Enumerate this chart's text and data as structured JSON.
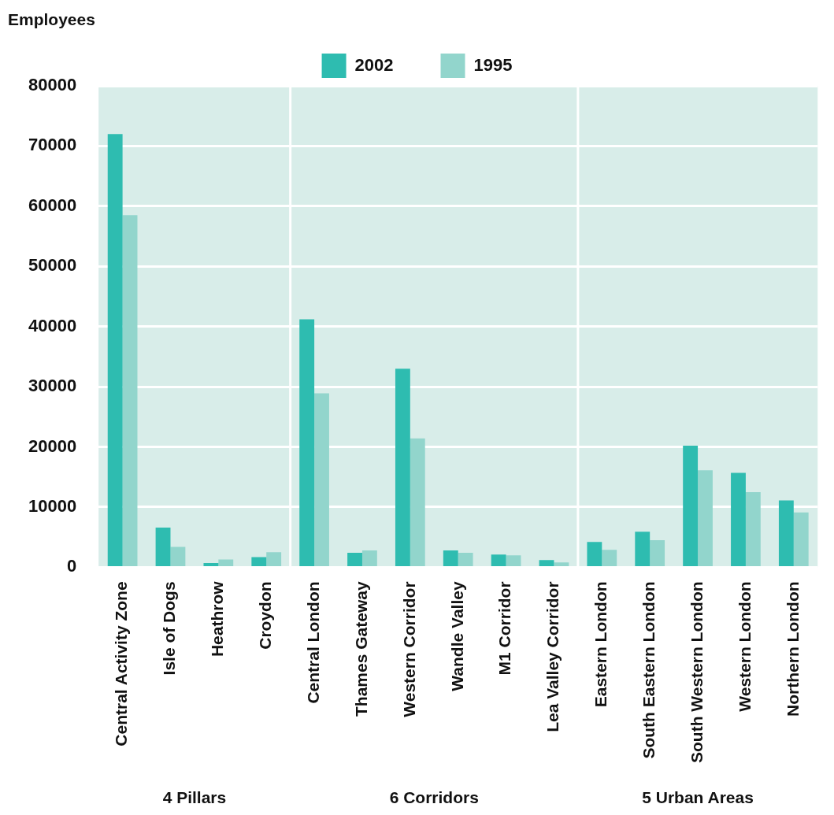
{
  "chart_data": {
    "type": "bar",
    "ylabel": "Employees",
    "categories": [
      "Central Activity Zone",
      "Isle of Dogs",
      "Heathrow",
      "Croydon",
      "Central London",
      "Thames Gateway",
      "Western Corridor",
      "Wandle Valley",
      "M1 Corridor",
      "Lea Valley Corridor",
      "Eastern London",
      "South Eastern London",
      "South Western London",
      "Western London",
      "Northern London"
    ],
    "series": [
      {
        "name": "2002",
        "color": "#2ebcb0",
        "values": [
          72000,
          6600,
          700,
          1700,
          41200,
          2400,
          33000,
          2800,
          2100,
          1200,
          4200,
          5900,
          20200,
          15700,
          11100
        ]
      },
      {
        "name": "1995",
        "color": "#92d5cc",
        "values": [
          58500,
          3400,
          1300,
          2500,
          28900,
          2800,
          21400,
          2400,
          2000,
          800,
          2900,
          4500,
          16100,
          12500,
          9100
        ]
      }
    ],
    "ylim": [
      0,
      80000
    ],
    "yticks": [
      0,
      10000,
      20000,
      30000,
      40000,
      50000,
      60000,
      70000,
      80000
    ],
    "grid": "y",
    "legend": "top",
    "annotations": [
      "4 Pillars",
      "6 Corridors",
      "5 Urban Areas"
    ]
  }
}
